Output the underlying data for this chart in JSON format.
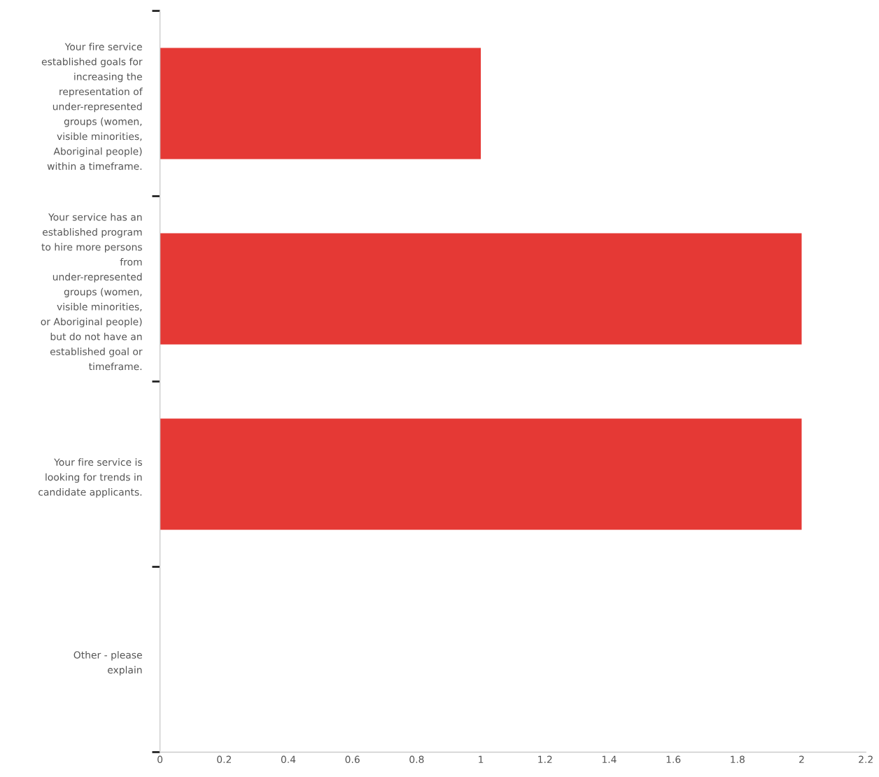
{
  "chart_data": {
    "type": "bar",
    "orientation": "horizontal",
    "categories": [
      "Your fire service\nestablished goals for\nincreasing the\nrepresentation of\nunder-represented\ngroups (women,\nvisible minorities,\nAboriginal people)\nwithin a timeframe.",
      "Your service has an\nestablished program\nto hire more persons\nfrom\nunder-represented\ngroups (women,\nvisible minorities,\nor Aboriginal people)\nbut do not have an\nestablished goal or\ntimeframe.",
      "Your fire service is\nlooking for trends in\ncandidate applicants.",
      "Other - please\nexplain"
    ],
    "values": [
      1,
      2,
      2,
      0
    ],
    "color": "#e53935",
    "xlim": [
      0,
      2.2
    ],
    "xticks": [
      0,
      0.2,
      0.4,
      0.6,
      0.8,
      1,
      1.2,
      1.4,
      1.6,
      1.8,
      2,
      2.2
    ],
    "grid": false,
    "legend": false
  }
}
